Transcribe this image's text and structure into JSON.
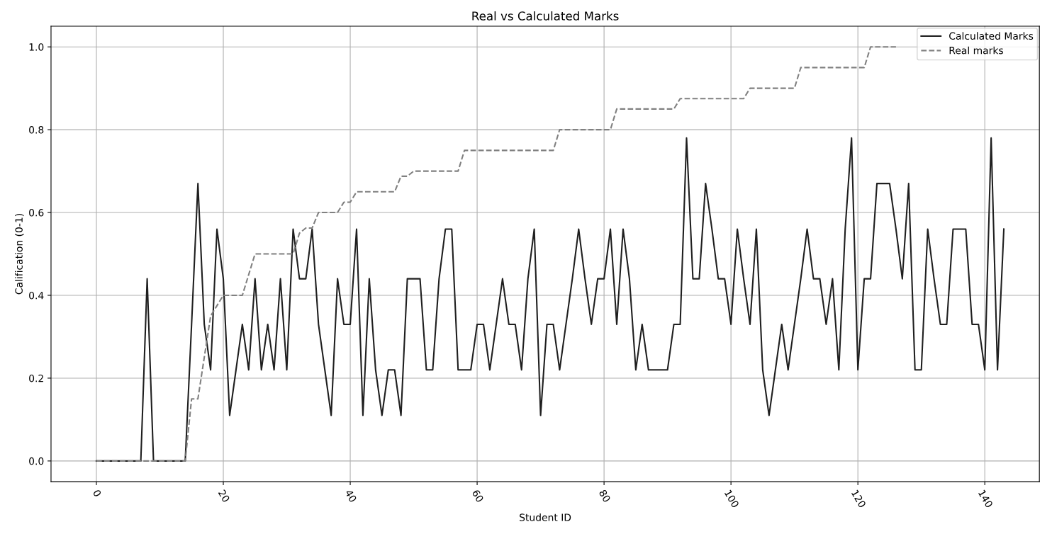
{
  "chart_data": {
    "type": "line",
    "title": "Real vs Calculated Marks",
    "xlabel": "Student ID",
    "ylabel": "Calification (0-1)",
    "x": [
      0,
      1,
      2,
      3,
      4,
      5,
      6,
      7,
      8,
      9,
      10,
      11,
      12,
      13,
      14,
      15,
      16,
      17,
      18,
      19,
      20,
      21,
      22,
      23,
      24,
      25,
      26,
      27,
      28,
      29,
      30,
      31,
      32,
      33,
      34,
      35,
      36,
      37,
      38,
      39,
      40,
      41,
      42,
      43,
      44,
      45,
      46,
      47,
      48,
      49,
      50,
      51,
      52,
      53,
      54,
      55,
      56,
      57,
      58,
      59,
      60,
      61,
      62,
      63,
      64,
      65,
      66,
      67,
      68,
      69,
      70,
      71,
      72,
      73,
      74,
      75,
      76,
      77,
      78,
      79,
      80,
      81,
      82,
      83,
      84,
      85,
      86,
      87,
      88,
      89,
      90,
      91,
      92,
      93,
      94,
      95,
      96,
      97,
      98,
      99,
      100,
      101,
      102,
      103,
      104,
      105,
      106,
      107,
      108,
      109,
      110,
      111,
      112,
      113,
      114,
      115,
      116,
      117,
      118,
      119,
      120,
      121,
      122,
      123,
      124,
      125,
      126,
      127,
      128,
      129,
      130,
      131,
      132,
      133,
      134,
      135,
      136,
      137,
      138,
      139,
      140,
      141,
      142,
      143
    ],
    "series": [
      {
        "name": "Calculated Marks",
        "color": "#1f1f1f",
        "line_style": "solid",
        "values": [
          0,
          0,
          0,
          0,
          0,
          0,
          0,
          0,
          0.44,
          0,
          0,
          0,
          0,
          0,
          0,
          0.33,
          0.67,
          0.33,
          0.22,
          0.56,
          0.44,
          0.11,
          0.22,
          0.33,
          0.22,
          0.44,
          0.22,
          0.33,
          0.22,
          0.44,
          0.22,
          0.56,
          0.44,
          0.44,
          0.56,
          0.33,
          0.22,
          0.11,
          0.44,
          0.33,
          0.33,
          0.56,
          0.11,
          0.44,
          0.22,
          0.11,
          0.22,
          0.22,
          0.11,
          0.44,
          0.44,
          0.44,
          0.22,
          0.22,
          0.44,
          0.56,
          0.56,
          0.22,
          0.22,
          0.22,
          0.33,
          0.33,
          0.22,
          0.33,
          0.44,
          0.33,
          0.33,
          0.22,
          0.44,
          0.56,
          0.11,
          0.33,
          0.33,
          0.22,
          0.33,
          0.44,
          0.56,
          0.44,
          0.33,
          0.44,
          0.44,
          0.56,
          0.33,
          0.56,
          0.44,
          0.22,
          0.33,
          0.22,
          0.22,
          0.22,
          0.22,
          0.33,
          0.33,
          0.78,
          0.44,
          0.44,
          0.67,
          0.56,
          0.44,
          0.44,
          0.33,
          0.56,
          0.44,
          0.33,
          0.56,
          0.22,
          0.11,
          0.22,
          0.33,
          0.22,
          0.33,
          0.44,
          0.56,
          0.44,
          0.44,
          0.33,
          0.44,
          0.22,
          0.56,
          0.78,
          0.22,
          0.44,
          0.44,
          0.67,
          0.67,
          0.67,
          0.56,
          0.44,
          0.67,
          0.22,
          0.22,
          0.56,
          0.44,
          0.33,
          0.33,
          0.56,
          0.56,
          0.56,
          0.33,
          0.33,
          0.22,
          0.78,
          0.22,
          0.56
        ]
      },
      {
        "name": "Real marks",
        "color": "#808080",
        "line_style": "dashed",
        "values": [
          0,
          0,
          0,
          0,
          0,
          0,
          0,
          0,
          0,
          0,
          0,
          0,
          0,
          0,
          0,
          0.15,
          0.15,
          0.25,
          0.35,
          0.375,
          0.4,
          0.4,
          0.4,
          0.4,
          0.45,
          0.5,
          0.5,
          0.5,
          0.5,
          0.5,
          0.5,
          0.5,
          0.55,
          0.5625,
          0.5625,
          0.6,
          0.6,
          0.6,
          0.6,
          0.625,
          0.625,
          0.65,
          0.65,
          0.65,
          0.65,
          0.65,
          0.65,
          0.65,
          0.6875,
          0.6875,
          0.7,
          0.7,
          0.7,
          0.7,
          0.7,
          0.7,
          0.7,
          0.7,
          0.75,
          0.75,
          0.75,
          0.75,
          0.75,
          0.75,
          0.75,
          0.75,
          0.75,
          0.75,
          0.75,
          0.75,
          0.75,
          0.75,
          0.75,
          0.8,
          0.8,
          0.8,
          0.8,
          0.8,
          0.8,
          0.8,
          0.8,
          0.8,
          0.85,
          0.85,
          0.85,
          0.85,
          0.85,
          0.85,
          0.85,
          0.85,
          0.85,
          0.85,
          0.875,
          0.875,
          0.875,
          0.875,
          0.875,
          0.875,
          0.875,
          0.875,
          0.875,
          0.875,
          0.875,
          0.9,
          0.9,
          0.9,
          0.9,
          0.9,
          0.9,
          0.9,
          0.9,
          0.95,
          0.95,
          0.95,
          0.95,
          0.95,
          0.95,
          0.95,
          0.95,
          0.95,
          0.95,
          0.95,
          1.0,
          1.0,
          1.0,
          1.0,
          1.0,
          null,
          null,
          null,
          null,
          null,
          null,
          null,
          null,
          null,
          null,
          null,
          null,
          null,
          null,
          null,
          null,
          null
        ]
      }
    ],
    "xlim": [
      -7.15,
      148.6
    ],
    "xticks": [
      0,
      20,
      40,
      60,
      80,
      100,
      120,
      140
    ],
    "ylim": [
      -0.05,
      1.05
    ],
    "yticks": [
      {
        "value": 0,
        "label": "0.0"
      },
      {
        "value": 0.2,
        "label": "0.2"
      },
      {
        "value": 0.4,
        "label": "0.4"
      },
      {
        "value": 0.6,
        "label": "0.6"
      },
      {
        "value": 0.8,
        "label": "0.8"
      },
      {
        "value": 1.0,
        "label": "1.0"
      }
    ],
    "grid": true,
    "legend": "top right",
    "marker": "none"
  }
}
